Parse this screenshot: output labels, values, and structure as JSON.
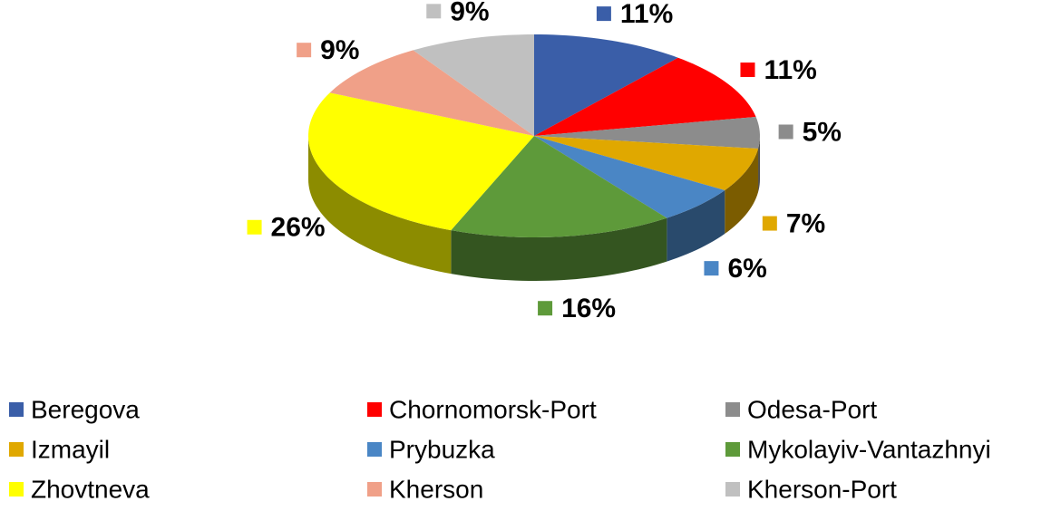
{
  "chart_data": {
    "type": "pie",
    "categories": [
      "Beregova",
      "Chornomorsk-Port",
      "Odesa-Port",
      "Izmayil",
      "Prybuzka",
      "Mykolayiv-Vantazhnyi",
      "Zhovtneva",
      "Kherson",
      "Kherson-Port"
    ],
    "values": [
      11,
      11,
      5,
      7,
      6,
      16,
      26,
      9,
      9
    ],
    "value_labels": [
      "11%",
      "11%",
      "5%",
      "7%",
      "6%",
      "16%",
      "26%",
      "9%",
      "9%"
    ],
    "colors": [
      "#3a5ea8",
      "#ff0000",
      "#8c8c8c",
      "#e0a800",
      "#4a86c5",
      "#5e9a3a",
      "#ffff00",
      "#f0a088",
      "#c0c0c0"
    ],
    "legend": "bottom"
  }
}
